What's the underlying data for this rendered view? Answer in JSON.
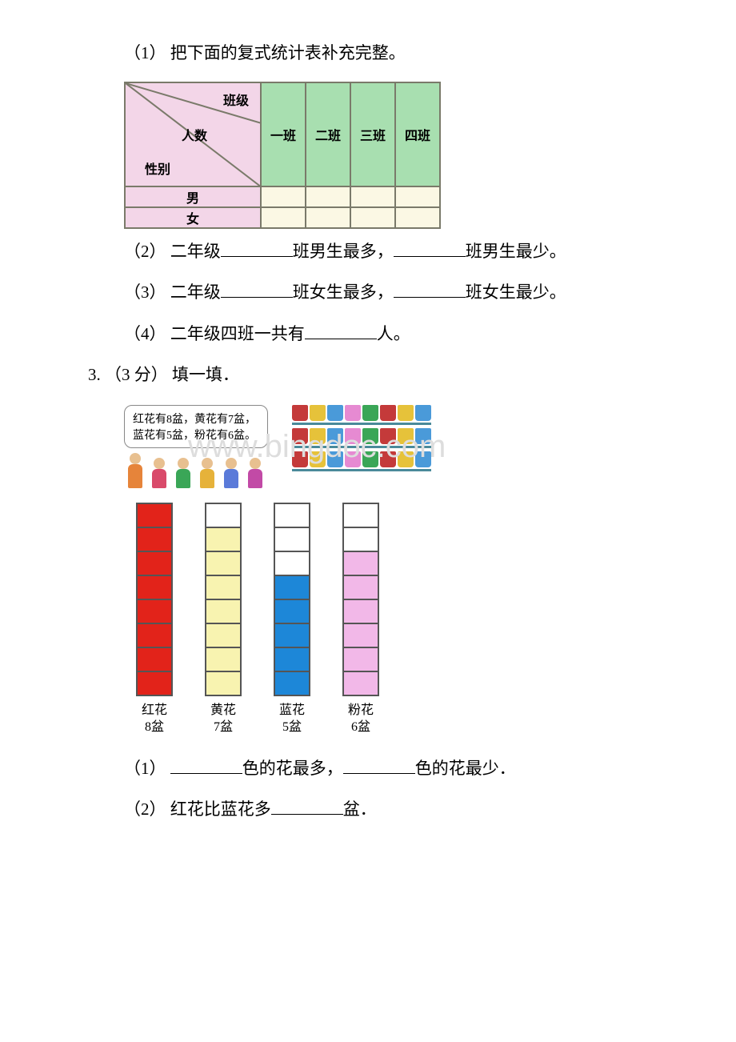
{
  "q1": {
    "prompt": "（1） 把下面的复式统计表补充完整。",
    "table": {
      "diag_top": "班级",
      "diag_mid": "人数",
      "diag_bottom": "性别",
      "cols": [
        "一班",
        "二班",
        "三班",
        "四班"
      ],
      "rows": [
        "男",
        "女"
      ],
      "header_bg": "#a8dfb0",
      "rowhead_bg": "#f3d6e8",
      "cell_bg": "#fbf8e4",
      "border_color": "#7a7a6a"
    }
  },
  "q2": {
    "text_a": "（2） 二年级",
    "text_b": "班男生最多，",
    "text_c": "班男生最少。"
  },
  "q3": {
    "text_a": "（3） 二年级",
    "text_b": "班女生最多，",
    "text_c": "班女生最少。"
  },
  "q4": {
    "text_a": "（4） 二年级四班一共有",
    "text_b": "人。"
  },
  "sec3": {
    "intro": "3. （3 分） 填一填．",
    "bubble_line1": "红花有8盆，黄花有7盆，",
    "bubble_line2": "蓝花有5盆，粉花有6盆。",
    "people_colors": [
      "#e6843a",
      "#d94a6a",
      "#3aa657",
      "#e6b23a",
      "#5a7ad9",
      "#c24aa6"
    ],
    "pot_colors": [
      "#c43a3a",
      "#e6c23a",
      "#4a9ad9",
      "#e68ad2",
      "#3aa657",
      "#c43a3a",
      "#e6c23a",
      "#4a9ad9"
    ],
    "watermark": "www.bingdoc.com"
  },
  "chart": {
    "total_cells": 8,
    "bars": [
      {
        "name": "红花",
        "count": 8,
        "count_label": "8盆",
        "fill": "filled-red"
      },
      {
        "name": "黄花",
        "count": 7,
        "count_label": "7盆",
        "fill": "filled-yellow"
      },
      {
        "name": "蓝花",
        "count": 5,
        "count_label": "5盆",
        "fill": "filled-blue"
      },
      {
        "name": "粉花",
        "count": 6,
        "count_label": "6盆",
        "fill": "filled-pink"
      }
    ]
  },
  "q5": {
    "text_a": "（1） ",
    "text_b": "色的花最多，",
    "text_c": "色的花最少．"
  },
  "q6": {
    "text_a": "（2） 红花比蓝花多",
    "text_b": "盆．"
  }
}
